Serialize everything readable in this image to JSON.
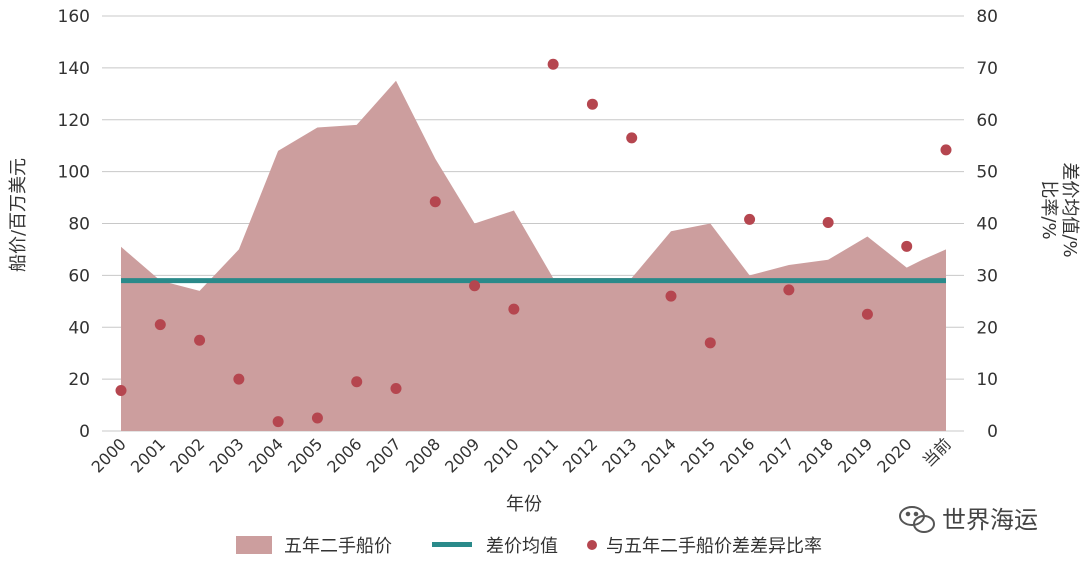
{
  "chart_data": {
    "type": "area",
    "categories": [
      "2000",
      "2001",
      "2002",
      "2003",
      "2004",
      "2005",
      "2006",
      "2007",
      "2008",
      "2009",
      "2010",
      "2011",
      "2012",
      "2013",
      "2014",
      "2015",
      "2016",
      "2017",
      "2018",
      "2019",
      "2020",
      "当前"
    ],
    "series": [
      {
        "name": "五年二手船价",
        "type": "area",
        "axis": "left",
        "color": "#cc9e9e",
        "x": [
          0,
          1,
          2,
          3,
          4,
          5,
          6,
          7,
          8,
          9,
          10,
          11,
          12,
          13,
          14,
          15,
          16,
          17,
          18,
          19,
          20,
          20.4,
          21
        ],
        "values": [
          71,
          58,
          54,
          70,
          108,
          117,
          118,
          135,
          105,
          80,
          85,
          59,
          59,
          59,
          77,
          80,
          60,
          64,
          66,
          75,
          63,
          66,
          70
        ]
      },
      {
        "name": "差价均值",
        "type": "line",
        "axis": "left",
        "color": "#2a8a8a",
        "values": [
          58,
          58,
          58,
          58,
          58,
          58,
          58,
          58,
          58,
          58,
          58,
          58,
          58,
          58,
          58,
          58,
          58,
          58,
          58,
          58,
          58,
          58
        ]
      },
      {
        "name": "与五年二手船价差差异比率",
        "type": "scatter",
        "axis": "right",
        "color": "#b5464f",
        "values": [
          7.8,
          20.5,
          17.5,
          10,
          1.8,
          2.5,
          9.5,
          8.2,
          44.2,
          28,
          23.5,
          70.7,
          63,
          56.5,
          26,
          17,
          40.8,
          27.2,
          40.2,
          22.5,
          35.6,
          54.2
        ]
      }
    ],
    "xlabel": "年份",
    "ylabel_left": "船价/百万美元",
    "ylabel_right_1": "比率/%",
    "ylabel_right_2": "差价均值/%",
    "ylim_left": [
      0,
      160
    ],
    "yticks_left": [
      0,
      20,
      40,
      60,
      80,
      100,
      120,
      140,
      160
    ],
    "ylim_right": [
      0,
      80
    ],
    "yticks_right": [
      0,
      10,
      20,
      30,
      40,
      50,
      60,
      70,
      80
    ],
    "grid": true,
    "legend": "bottom-center"
  },
  "legend": {
    "area_label": "五年二手船价",
    "line_label": "差价均值",
    "scatter_label": "与五年二手船价差差异比率"
  },
  "watermark": {
    "text": "世界海运",
    "icon": "wechat-icon"
  }
}
